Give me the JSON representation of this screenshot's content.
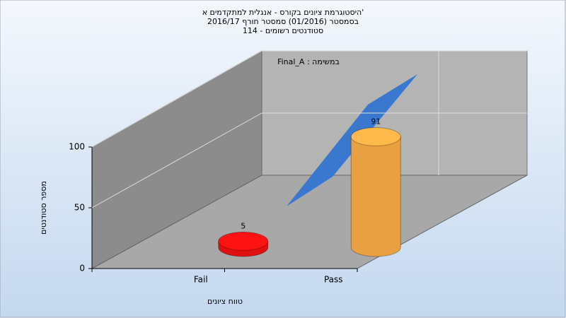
{
  "chart_data": {
    "type": "bar",
    "title": [
      "היסטוגרמת ציונים בקורס - אנגלית למתקדמים א'",
      "בסמסטר  (01/2016)  סמסטר חורף 2016/17",
      "סטודנטים רשומים - 114"
    ],
    "annotation": "Final_A : במשימה",
    "x_label": "טווח ציונים",
    "y_label": "מספר סטודנטים",
    "categories": [
      "Fail",
      "Pass"
    ],
    "values": [
      5,
      91
    ],
    "colors": [
      "#e01010",
      "#e8a040"
    ],
    "ylim": [
      0,
      100
    ],
    "yticks": [
      0,
      50,
      100
    ],
    "grid": true
  }
}
